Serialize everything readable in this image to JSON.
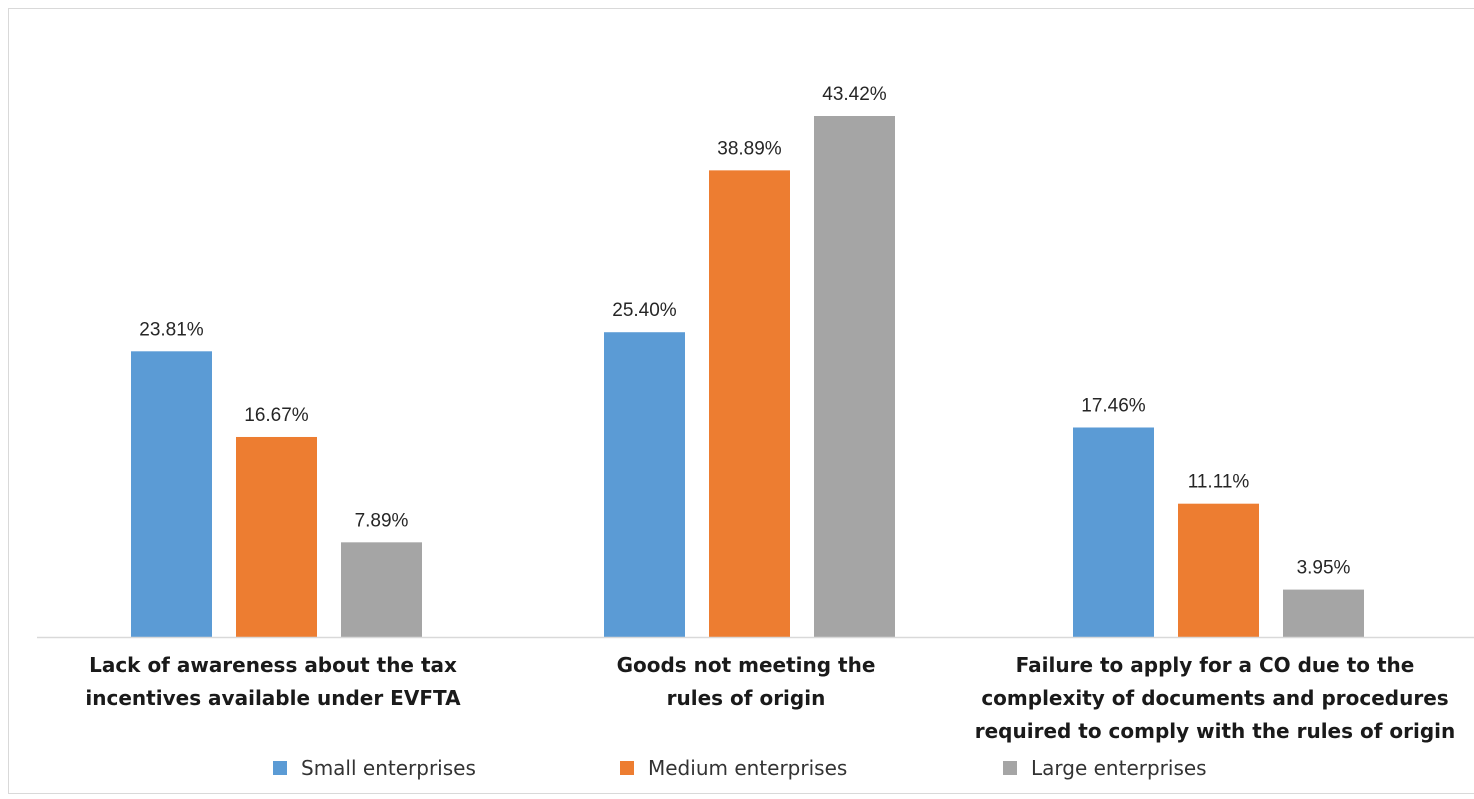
{
  "chart_data": {
    "type": "bar",
    "title": "",
    "xlabel": "",
    "ylabel": "",
    "ylim": [
      0,
      50
    ],
    "grid": false,
    "legend_position": "bottom",
    "categories": [
      [
        "Lack of awareness about the tax",
        "incentives available under EVFTA"
      ],
      [
        "Goods not meeting the",
        "rules of origin"
      ],
      [
        "Failure to apply for a CO due to the",
        "complexity of documents and procedures",
        "required to comply with the rules of origin"
      ]
    ],
    "series": [
      {
        "name": "Small enterprises",
        "color": "#5b9bd5",
        "values": [
          23.81,
          25.4,
          17.46
        ],
        "labels": [
          "23.81%",
          "25.40%",
          "17.46%"
        ]
      },
      {
        "name": "Medium enterprises",
        "color": "#ed7d31",
        "values": [
          16.67,
          38.89,
          11.11
        ],
        "labels": [
          "16.67%",
          "38.89%",
          "11.11%"
        ]
      },
      {
        "name": "Large enterprises",
        "color": "#a5a5a5",
        "values": [
          7.89,
          43.42,
          3.95
        ],
        "labels": [
          "7.89%",
          "43.42%",
          "3.95%"
        ]
      }
    ]
  }
}
